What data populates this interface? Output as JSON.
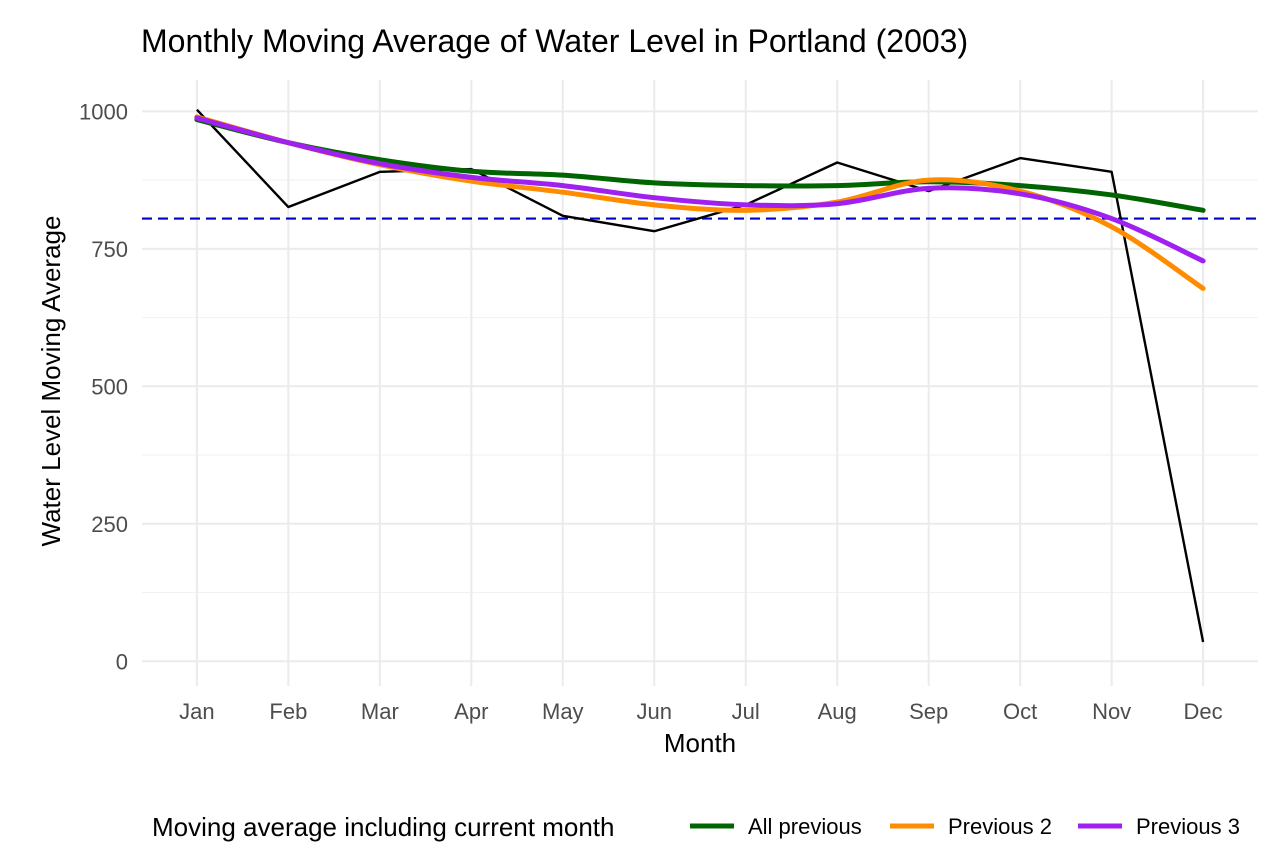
{
  "chart_data": {
    "type": "line",
    "title": "Monthly Moving Average of Water Level in Portland (2003)",
    "xlabel": "Month",
    "ylabel": "Water Level Moving Average",
    "categories": [
      "Jan",
      "Feb",
      "Mar",
      "Apr",
      "May",
      "Jun",
      "Jul",
      "Aug",
      "Sep",
      "Oct",
      "Nov",
      "Dec"
    ],
    "ylim": [
      -45,
      1057
    ],
    "yticks": [
      0,
      250,
      500,
      750,
      1000
    ],
    "grid": true,
    "raw_series": {
      "values": [
        1003,
        826,
        890,
        895,
        810,
        782,
        830,
        907,
        855,
        915,
        890,
        35
      ],
      "color": "#000000"
    },
    "reference_line": {
      "value": 805,
      "color": "#0000cc",
      "style": "dashed"
    },
    "series": [
      {
        "name": "All previous",
        "values": [
          985,
          943,
          912,
          891,
          884,
          870,
          865,
          865,
          872,
          865,
          848,
          820
        ],
        "color": "#006400"
      },
      {
        "name": "Previous 2",
        "values": [
          990,
          943,
          903,
          873,
          853,
          830,
          820,
          835,
          875,
          855,
          790,
          678
        ],
        "color": "#ff8c00"
      },
      {
        "name": "Previous 3",
        "values": [
          988,
          943,
          905,
          880,
          865,
          843,
          830,
          832,
          860,
          850,
          805,
          728
        ],
        "color": "#a020f0"
      }
    ],
    "legend": {
      "title": "Moving average including current month",
      "position": "bottom"
    }
  }
}
